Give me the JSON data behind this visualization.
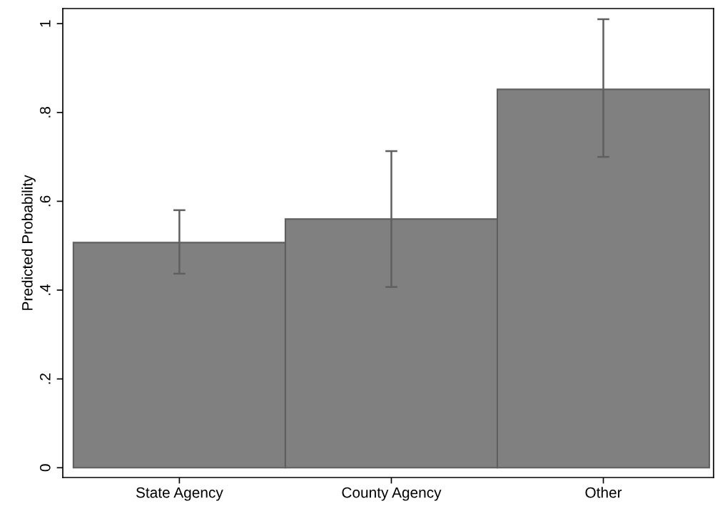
{
  "chart_data": {
    "type": "bar",
    "ylabel": "Predicted Probability",
    "categories": [
      "State Agency",
      "County Agency",
      "Other"
    ],
    "values": [
      0.507,
      0.56,
      0.852
    ],
    "errors": [
      [
        0.437,
        0.58
      ],
      [
        0.407,
        0.713
      ],
      [
        0.7,
        1.01
      ]
    ],
    "color": "#808080",
    "ylim": [
      -0.022,
      1.034
    ],
    "yticks": [
      0,
      {
        "value": 0.2,
        "label": ".2"
      },
      {
        "value": 0.4,
        "label": ".4"
      },
      {
        "value": 0.6,
        "label": ".6"
      },
      {
        "value": 0.8,
        "label": ".8"
      },
      1
    ],
    "grid": false
  }
}
